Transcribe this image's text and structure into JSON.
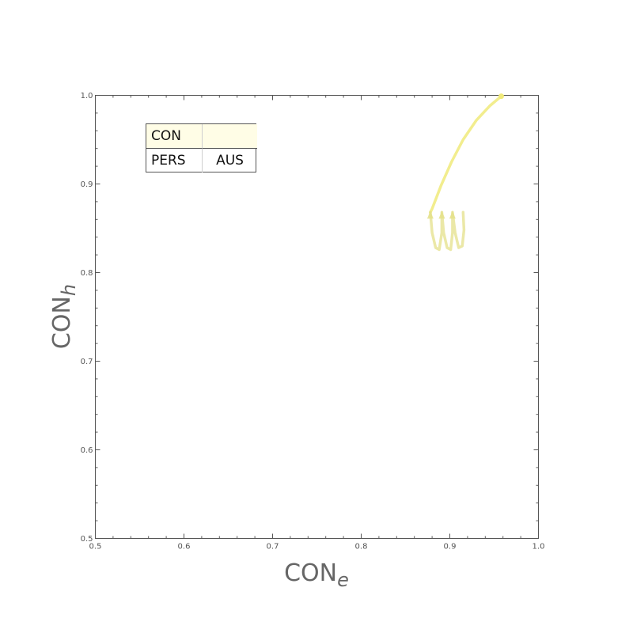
{
  "chart_data": {
    "type": "line",
    "title": "",
    "xlabel_main": "CON",
    "xlabel_sub": "e",
    "ylabel_main": "CON",
    "ylabel_sub": "h",
    "xlim": [
      0.5,
      1.0
    ],
    "ylim": [
      0.5,
      1.0
    ],
    "x_ticks": [
      "0.5",
      "0.6",
      "0.7",
      "0.8",
      "0.9",
      "1.0"
    ],
    "y_ticks": [
      "0.5",
      "0.6",
      "0.7",
      "0.8",
      "0.9",
      "1.0"
    ],
    "grid": false,
    "legend_placement": "top-left",
    "legend": {
      "rows": [
        {
          "col1": "CON",
          "col2": ""
        },
        {
          "col1": "PERS",
          "col2": "AUS"
        }
      ]
    },
    "series": [
      {
        "color": "#f0ea7a",
        "points": [
          [
            0.958,
            0.999
          ],
          [
            0.945,
            0.988
          ],
          [
            0.93,
            0.972
          ],
          [
            0.915,
            0.95
          ],
          [
            0.902,
            0.925
          ],
          [
            0.89,
            0.898
          ],
          [
            0.88,
            0.872
          ],
          [
            0.878,
            0.868
          ]
        ]
      },
      {
        "color": "#e4e08a",
        "points": [
          [
            0.878,
            0.868
          ],
          [
            0.88,
            0.845
          ],
          [
            0.884,
            0.828
          ],
          [
            0.888,
            0.826
          ],
          [
            0.891,
            0.845
          ],
          [
            0.891,
            0.868
          ],
          [
            0.893,
            0.845
          ],
          [
            0.897,
            0.828
          ],
          [
            0.901,
            0.826
          ],
          [
            0.903,
            0.845
          ],
          [
            0.903,
            0.868
          ],
          [
            0.906,
            0.845
          ],
          [
            0.91,
            0.828
          ],
          [
            0.914,
            0.83
          ],
          [
            0.916,
            0.848
          ],
          [
            0.915,
            0.868
          ]
        ]
      }
    ],
    "colors": {
      "frame": "#555555",
      "axis_text": "#666666",
      "legend_highlight": "#fffde6"
    }
  }
}
